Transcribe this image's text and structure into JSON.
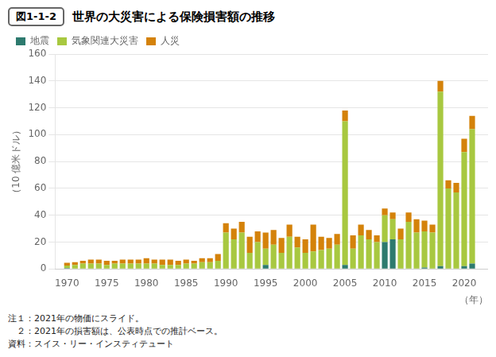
{
  "chart_data": {
    "type": "bar",
    "title": "世界の大災害による保険損害額の推移",
    "subtitle": "図1-1-2",
    "ylabel": "（10 億米ドル）",
    "xlabel": "（年）",
    "annotations": [
      "注１：2021年の物価にスライド。",
      "　２：2021年の損害額は、公表時点での推計ベース。",
      "資料：スイス・リー・インスティテュート"
    ],
    "x": [
      1970,
      1971,
      1972,
      1973,
      1974,
      1975,
      1976,
      1977,
      1978,
      1979,
      1980,
      1981,
      1982,
      1983,
      1984,
      1985,
      1986,
      1987,
      1988,
      1989,
      1990,
      1991,
      1992,
      1993,
      1994,
      1995,
      1996,
      1997,
      1998,
      1999,
      2000,
      2001,
      2002,
      2003,
      2004,
      2005,
      2006,
      2007,
      2008,
      2009,
      2010,
      2011,
      2012,
      2013,
      2014,
      2015,
      2016,
      2017,
      2018,
      2019,
      2020,
      2021
    ],
    "series": [
      {
        "name": "地震",
        "color": "#2d7a6e",
        "values": [
          0.5,
          0,
          0,
          0,
          0,
          0,
          0,
          0,
          0,
          0,
          0,
          0,
          0,
          0,
          0,
          0,
          0,
          0,
          0,
          0,
          0,
          0,
          0,
          0,
          0,
          3,
          0,
          0,
          0,
          0,
          0,
          0,
          0,
          0,
          0,
          3,
          0,
          0,
          0,
          0,
          20,
          22,
          0,
          0,
          0,
          1,
          0,
          2,
          0,
          0,
          2,
          4
        ]
      },
      {
        "name": "気象関連大災害",
        "color": "#a8c840",
        "values": [
          2,
          3,
          4,
          4,
          4,
          3,
          4,
          4,
          4,
          4,
          4,
          4,
          3,
          3,
          3,
          4,
          4,
          5,
          5,
          6,
          27,
          22,
          27,
          12,
          20,
          12,
          18,
          12,
          24,
          16,
          12,
          13,
          14,
          15,
          18,
          107,
          15,
          25,
          22,
          20,
          20,
          15,
          22,
          35,
          27,
          27,
          27,
          130,
          60,
          57,
          85,
          100
        ]
      },
      {
        "name": "人災",
        "color": "#d4820a",
        "values": [
          2,
          2,
          2,
          3,
          3,
          3,
          2,
          3,
          3,
          3,
          4,
          3,
          4,
          4,
          3,
          3,
          2,
          3,
          3,
          5,
          7,
          8,
          8,
          12,
          8,
          12,
          11,
          11,
          9,
          8,
          10,
          20,
          10,
          8,
          8,
          8,
          10,
          8,
          7,
          5,
          5,
          5,
          8,
          7,
          10,
          8,
          6,
          8,
          6,
          7,
          10,
          10
        ]
      }
    ],
    "stacked": true,
    "xlim": [
      1968.5,
      2023
    ],
    "xticks": [
      1970,
      1975,
      1980,
      1985,
      1990,
      1995,
      2000,
      2005,
      2010,
      2015,
      2020
    ],
    "ylim": [
      0,
      160
    ],
    "yticks": [
      0,
      20,
      40,
      60,
      80,
      100,
      120,
      140,
      160
    ],
    "grid": true,
    "legend": "upper left"
  }
}
